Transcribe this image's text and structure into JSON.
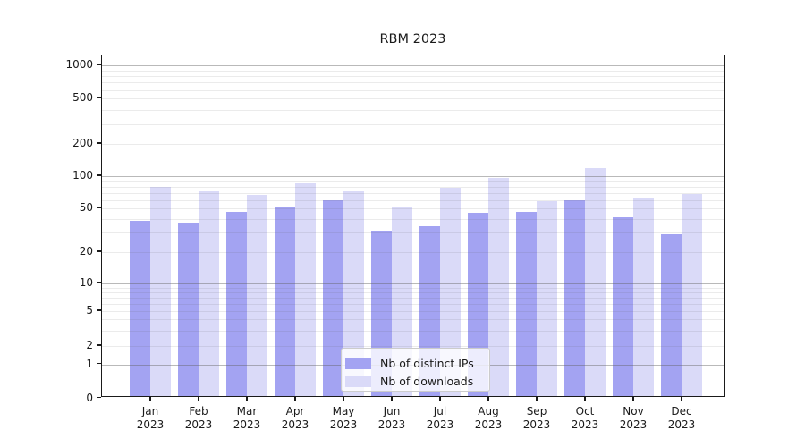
{
  "figure": {
    "title": "RBM 2023"
  },
  "chart_data": {
    "type": "bar",
    "title": "RBM 2023",
    "categories": [
      "Jan",
      "Feb",
      "Mar",
      "Apr",
      "May",
      "Jun",
      "Jul",
      "Aug",
      "Sep",
      "Oct",
      "Nov",
      "Dec"
    ],
    "x_year_line": "2023",
    "series": [
      {
        "name": "Nb of distinct IPs",
        "color": "#a3a3f2",
        "values": [
          37,
          36,
          45,
          50,
          57,
          30,
          33,
          44,
          45,
          57,
          40,
          28
        ]
      },
      {
        "name": "Nb of downloads",
        "color": "#dadaf8",
        "values": [
          77,
          70,
          65,
          82,
          70,
          50,
          75,
          93,
          56,
          114,
          60,
          66
        ]
      }
    ],
    "yscale": "symlog",
    "ylim": [
      0,
      1000
    ],
    "y_ticks": [
      0,
      1,
      2,
      5,
      10,
      20,
      50,
      100,
      200,
      500,
      1000
    ],
    "grid": true,
    "grid_over_bars": true,
    "legend_position": "lower center",
    "legend_entries": [
      "Nb of distinct IPs",
      "Nb of downloads"
    ]
  }
}
